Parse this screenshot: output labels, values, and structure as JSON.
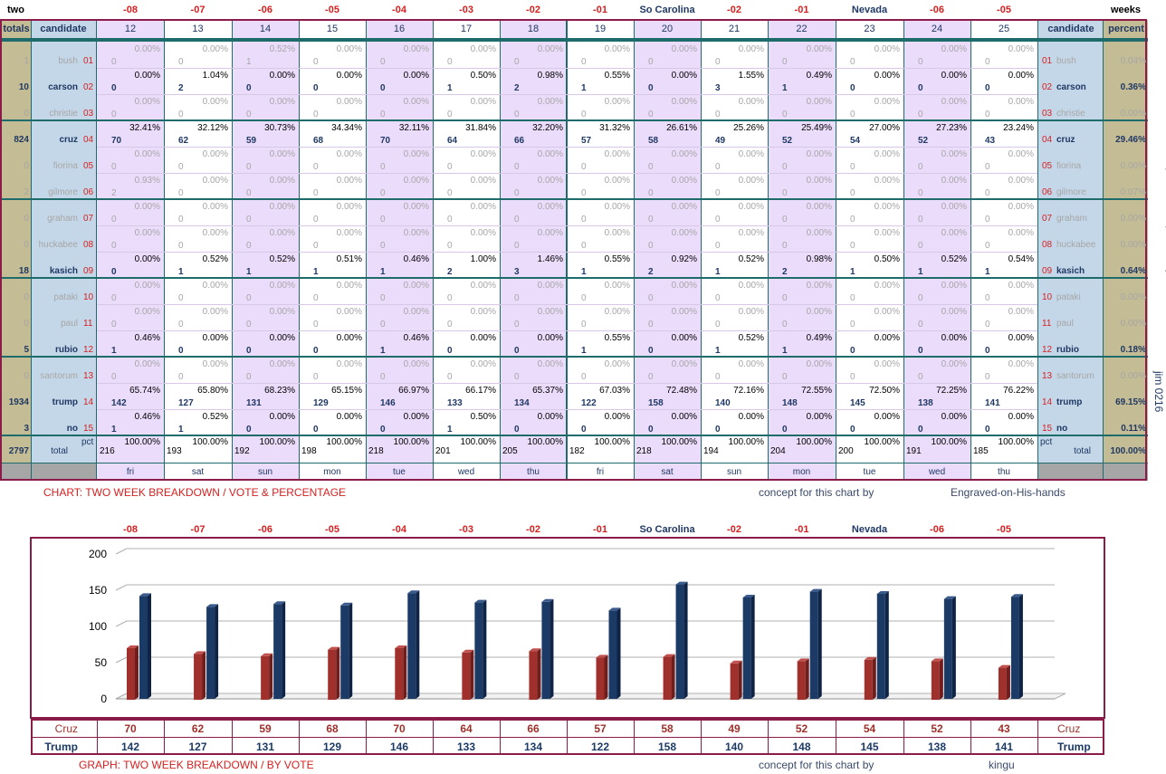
{
  "header": {
    "left": "two",
    "right": "weeks",
    "day_markers": [
      "-08",
      "-07",
      "-06",
      "-05",
      "-04",
      "-03",
      "-02",
      "-01",
      "So Carolina",
      "-02",
      "-01",
      "Nevada",
      "-06",
      "-05"
    ],
    "totals_label": "totals",
    "candidate_label": "candidate",
    "percent_label": "percent",
    "columns": [
      "12",
      "13",
      "14",
      "15",
      "16",
      "17",
      "18",
      "19",
      "20",
      "21",
      "22",
      "23",
      "24",
      "25"
    ],
    "weekdays": [
      "fri",
      "sat",
      "sun",
      "mon",
      "tue",
      "wed",
      "thu",
      "fri",
      "sat",
      "sun",
      "mon",
      "tue",
      "wed",
      "thu"
    ]
  },
  "candidates": [
    {
      "name": "bush",
      "num": "01",
      "total": "1",
      "percent": "0.04%",
      "bold": false,
      "v": [
        "0",
        "0",
        "1",
        "0",
        "0",
        "0",
        "0",
        "0",
        "0",
        "0",
        "0",
        "0",
        "0",
        "0"
      ],
      "p": [
        "0.00%",
        "0.00%",
        "0.52%",
        "0.00%",
        "0.00%",
        "0.00%",
        "0.00%",
        "0.00%",
        "0.00%",
        "0.00%",
        "0.00%",
        "0.00%",
        "0.00%",
        "0.00%"
      ]
    },
    {
      "name": "carson",
      "num": "02",
      "total": "10",
      "percent": "0.36%",
      "bold": true,
      "v": [
        "0",
        "2",
        "0",
        "0",
        "0",
        "1",
        "2",
        "1",
        "0",
        "3",
        "1",
        "0",
        "0",
        "0"
      ],
      "p": [
        "0.00%",
        "1.04%",
        "0.00%",
        "0.00%",
        "0.00%",
        "0.50%",
        "0.98%",
        "0.55%",
        "0.00%",
        "1.55%",
        "0.49%",
        "0.00%",
        "0.00%",
        "0.00%"
      ]
    },
    {
      "name": "christie",
      "num": "03",
      "total": "0",
      "percent": "0.00%",
      "bold": false,
      "v": [
        "0",
        "0",
        "0",
        "0",
        "0",
        "0",
        "0",
        "0",
        "0",
        "0",
        "0",
        "0",
        "0",
        "0"
      ],
      "p": [
        "0.00%",
        "0.00%",
        "0.00%",
        "0.00%",
        "0.00%",
        "0.00%",
        "0.00%",
        "0.00%",
        "0.00%",
        "0.00%",
        "0.00%",
        "0.00%",
        "0.00%",
        "0.00%"
      ]
    },
    {
      "name": "cruz",
      "num": "04",
      "total": "824",
      "percent": "29.46%",
      "bold": true,
      "v": [
        "70",
        "62",
        "59",
        "68",
        "70",
        "64",
        "66",
        "57",
        "58",
        "49",
        "52",
        "54",
        "52",
        "43"
      ],
      "p": [
        "32.41%",
        "32.12%",
        "30.73%",
        "34.34%",
        "32.11%",
        "31.84%",
        "32.20%",
        "31.32%",
        "26.61%",
        "25.26%",
        "25.49%",
        "27.00%",
        "27.23%",
        "23.24%"
      ]
    },
    {
      "name": "fiorina",
      "num": "05",
      "total": "0",
      "percent": "0.00%",
      "bold": false,
      "v": [
        "0",
        "0",
        "0",
        "0",
        "0",
        "0",
        "0",
        "0",
        "0",
        "0",
        "0",
        "0",
        "0",
        "0"
      ],
      "p": [
        "0.00%",
        "0.00%",
        "0.00%",
        "0.00%",
        "0.00%",
        "0.00%",
        "0.00%",
        "0.00%",
        "0.00%",
        "0.00%",
        "0.00%",
        "0.00%",
        "0.00%",
        "0.00%"
      ]
    },
    {
      "name": "gilmore",
      "num": "06",
      "total": "2",
      "percent": "0.07%",
      "bold": false,
      "v": [
        "2",
        "0",
        "0",
        "0",
        "0",
        "0",
        "0",
        "0",
        "0",
        "0",
        "0",
        "0",
        "0",
        "0"
      ],
      "p": [
        "0.93%",
        "0.00%",
        "0.00%",
        "0.00%",
        "0.00%",
        "0.00%",
        "0.00%",
        "0.00%",
        "0.00%",
        "0.00%",
        "0.00%",
        "0.00%",
        "0.00%",
        "0.00%"
      ]
    },
    {
      "name": "graham",
      "num": "07",
      "total": "0",
      "percent": "0.00%",
      "bold": false,
      "v": [
        "0",
        "0",
        "0",
        "0",
        "0",
        "0",
        "0",
        "0",
        "0",
        "0",
        "0",
        "0",
        "0",
        "0"
      ],
      "p": [
        "0.00%",
        "0.00%",
        "0.00%",
        "0.00%",
        "0.00%",
        "0.00%",
        "0.00%",
        "0.00%",
        "0.00%",
        "0.00%",
        "0.00%",
        "0.00%",
        "0.00%",
        "0.00%"
      ]
    },
    {
      "name": "huckabee",
      "num": "08",
      "total": "0",
      "percent": "0.00%",
      "bold": false,
      "v": [
        "0",
        "0",
        "0",
        "0",
        "0",
        "0",
        "0",
        "0",
        "0",
        "0",
        "0",
        "0",
        "0",
        "0"
      ],
      "p": [
        "0.00%",
        "0.00%",
        "0.00%",
        "0.00%",
        "0.00%",
        "0.00%",
        "0.00%",
        "0.00%",
        "0.00%",
        "0.00%",
        "0.00%",
        "0.00%",
        "0.00%",
        "0.00%"
      ]
    },
    {
      "name": "kasich",
      "num": "09",
      "total": "18",
      "percent": "0.64%",
      "bold": true,
      "v": [
        "0",
        "1",
        "1",
        "1",
        "1",
        "2",
        "3",
        "1",
        "2",
        "1",
        "2",
        "1",
        "1",
        "1"
      ],
      "p": [
        "0.00%",
        "0.52%",
        "0.52%",
        "0.51%",
        "0.46%",
        "1.00%",
        "1.46%",
        "0.55%",
        "0.92%",
        "0.52%",
        "0.98%",
        "0.50%",
        "0.52%",
        "0.54%"
      ]
    },
    {
      "name": "pataki",
      "num": "10",
      "total": "0",
      "percent": "0.00%",
      "bold": false,
      "v": [
        "0",
        "0",
        "0",
        "0",
        "0",
        "0",
        "0",
        "0",
        "0",
        "0",
        "0",
        "0",
        "0",
        "0"
      ],
      "p": [
        "0.00%",
        "0.00%",
        "0.00%",
        "0.00%",
        "0.00%",
        "0.00%",
        "0.00%",
        "0.00%",
        "0.00%",
        "0.00%",
        "0.00%",
        "0.00%",
        "0.00%",
        "0.00%"
      ]
    },
    {
      "name": "paul",
      "num": "11",
      "total": "0",
      "percent": "0.00%",
      "bold": false,
      "v": [
        "0",
        "0",
        "0",
        "0",
        "0",
        "0",
        "0",
        "0",
        "0",
        "0",
        "0",
        "0",
        "0",
        "0"
      ],
      "p": [
        "0.00%",
        "0.00%",
        "0.00%",
        "0.00%",
        "0.00%",
        "0.00%",
        "0.00%",
        "0.00%",
        "0.00%",
        "0.00%",
        "0.00%",
        "0.00%",
        "0.00%",
        "0.00%"
      ]
    },
    {
      "name": "rubio",
      "num": "12",
      "total": "5",
      "percent": "0.18%",
      "bold": true,
      "v": [
        "1",
        "0",
        "0",
        "0",
        "1",
        "0",
        "0",
        "1",
        "0",
        "1",
        "1",
        "0",
        "0",
        "0"
      ],
      "p": [
        "0.46%",
        "0.00%",
        "0.00%",
        "0.00%",
        "0.46%",
        "0.00%",
        "0.00%",
        "0.55%",
        "0.00%",
        "0.52%",
        "0.49%",
        "0.00%",
        "0.00%",
        "0.00%"
      ]
    },
    {
      "name": "santorum",
      "num": "13",
      "total": "0",
      "percent": "0.00%",
      "bold": false,
      "v": [
        "0",
        "0",
        "0",
        "0",
        "0",
        "0",
        "0",
        "0",
        "0",
        "0",
        "0",
        "0",
        "0",
        "0"
      ],
      "p": [
        "0.00%",
        "0.00%",
        "0.00%",
        "0.00%",
        "0.00%",
        "0.00%",
        "0.00%",
        "0.00%",
        "0.00%",
        "0.00%",
        "0.00%",
        "0.00%",
        "0.00%",
        "0.00%"
      ]
    },
    {
      "name": "trump",
      "num": "14",
      "total": "1934",
      "percent": "69.15%",
      "bold": true,
      "v": [
        "142",
        "127",
        "131",
        "129",
        "146",
        "133",
        "134",
        "122",
        "158",
        "140",
        "148",
        "145",
        "138",
        "141"
      ],
      "p": [
        "65.74%",
        "65.80%",
        "68.23%",
        "65.15%",
        "66.97%",
        "66.17%",
        "65.37%",
        "67.03%",
        "72.48%",
        "72.16%",
        "72.55%",
        "72.50%",
        "72.25%",
        "76.22%"
      ]
    },
    {
      "name": "no",
      "num": "15",
      "total": "3",
      "percent": "0.11%",
      "bold": true,
      "v": [
        "1",
        "1",
        "0",
        "0",
        "0",
        "1",
        "0",
        "0",
        "0",
        "0",
        "0",
        "0",
        "0",
        "0"
      ],
      "p": [
        "0.46%",
        "0.52%",
        "0.00%",
        "0.00%",
        "0.00%",
        "0.50%",
        "0.00%",
        "0.00%",
        "0.00%",
        "0.00%",
        "0.00%",
        "0.00%",
        "0.00%",
        "0.00%"
      ]
    }
  ],
  "total_row": {
    "grand_total": "2797",
    "label_small": "pct",
    "label": "total",
    "percent": "100.00%",
    "values": [
      "216",
      "193",
      "192",
      "198",
      "218",
      "201",
      "205",
      "182",
      "218",
      "194",
      "204",
      "200",
      "191",
      "185"
    ],
    "pct": "100.00%"
  },
  "side_note": "total numbers and percents requested by",
  "side_note2": "jim 0216",
  "caption1": "CHART: TWO WEEK BREAKDOWN / VOTE & PERCENTAGE",
  "concept1_label": "concept for this chart by",
  "concept1_author": "Engraved-on-His-hands",
  "caption2": "GRAPH: TWO WEEK BREAKDOWN / BY VOTE",
  "concept2_label": "concept for this chart by",
  "concept2_author": "kingu",
  "colors": {
    "cruz": "#a0302c",
    "trump": "#1b3a66",
    "border": "#8b1c4a",
    "lilac": "#ecdcfc",
    "tan": "#c4bc94",
    "blue": "#c4d7e8",
    "red_text": "#d62020",
    "navy_text": "#1f3864"
  },
  "chart_data": {
    "type": "bar",
    "categories": [
      "-08",
      "-07",
      "-06",
      "-05",
      "-04",
      "-03",
      "-02",
      "-01",
      "So Carolina",
      "-02",
      "-01",
      "Nevada",
      "-06",
      "-05"
    ],
    "series": [
      {
        "name": "Cruz",
        "values": [
          70,
          62,
          59,
          68,
          70,
          64,
          66,
          57,
          58,
          49,
          52,
          54,
          52,
          43
        ]
      },
      {
        "name": "Trump",
        "values": [
          142,
          127,
          131,
          129,
          146,
          133,
          134,
          122,
          158,
          140,
          148,
          145,
          138,
          141
        ]
      }
    ],
    "yticks": [
      "0",
      "50",
      "100",
      "150",
      "200"
    ],
    "ylim": [
      0,
      200
    ],
    "grid": true,
    "legend": "table-below"
  }
}
